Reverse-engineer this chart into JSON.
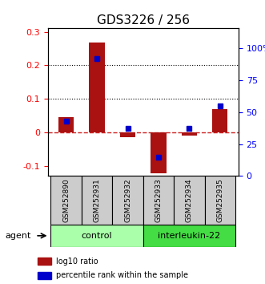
{
  "title": "GDS3226 / 256",
  "samples": [
    "GSM252890",
    "GSM252931",
    "GSM252932",
    "GSM252933",
    "GSM252934",
    "GSM252935"
  ],
  "log10_ratio": [
    0.045,
    0.268,
    -0.015,
    -0.122,
    -0.01,
    0.07
  ],
  "percentile_rank": [
    43,
    92,
    37,
    15,
    37,
    55
  ],
  "groups": [
    {
      "label": "control",
      "samples": [
        0,
        1,
        2
      ],
      "color": "#aaffaa"
    },
    {
      "label": "interleukin-22",
      "samples": [
        3,
        4,
        5
      ],
      "color": "#44ee44"
    }
  ],
  "bar_color": "#aa1111",
  "dot_color": "#0000cc",
  "ylim_left": [
    -0.13,
    0.31
  ],
  "ylim_right": [
    0,
    115.38
  ],
  "yticks_left": [
    -0.1,
    0.0,
    0.1,
    0.2,
    0.3
  ],
  "yticks_right": [
    0,
    25,
    50,
    75,
    100
  ],
  "ytick_labels_left": [
    "-0.1",
    "0",
    "0.1",
    "0.2",
    "0.3"
  ],
  "ytick_labels_right": [
    "0",
    "25",
    "50",
    "75",
    "100%"
  ],
  "hlines": [
    0.1,
    0.2
  ],
  "zero_line_color": "#cc2222",
  "grid_color": "#000000",
  "agent_label": "agent",
  "legend_items": [
    {
      "label": "log10 ratio",
      "color": "#aa1111"
    },
    {
      "label": "percentile rank within the sample",
      "color": "#0000cc"
    }
  ],
  "bar_width": 0.5
}
